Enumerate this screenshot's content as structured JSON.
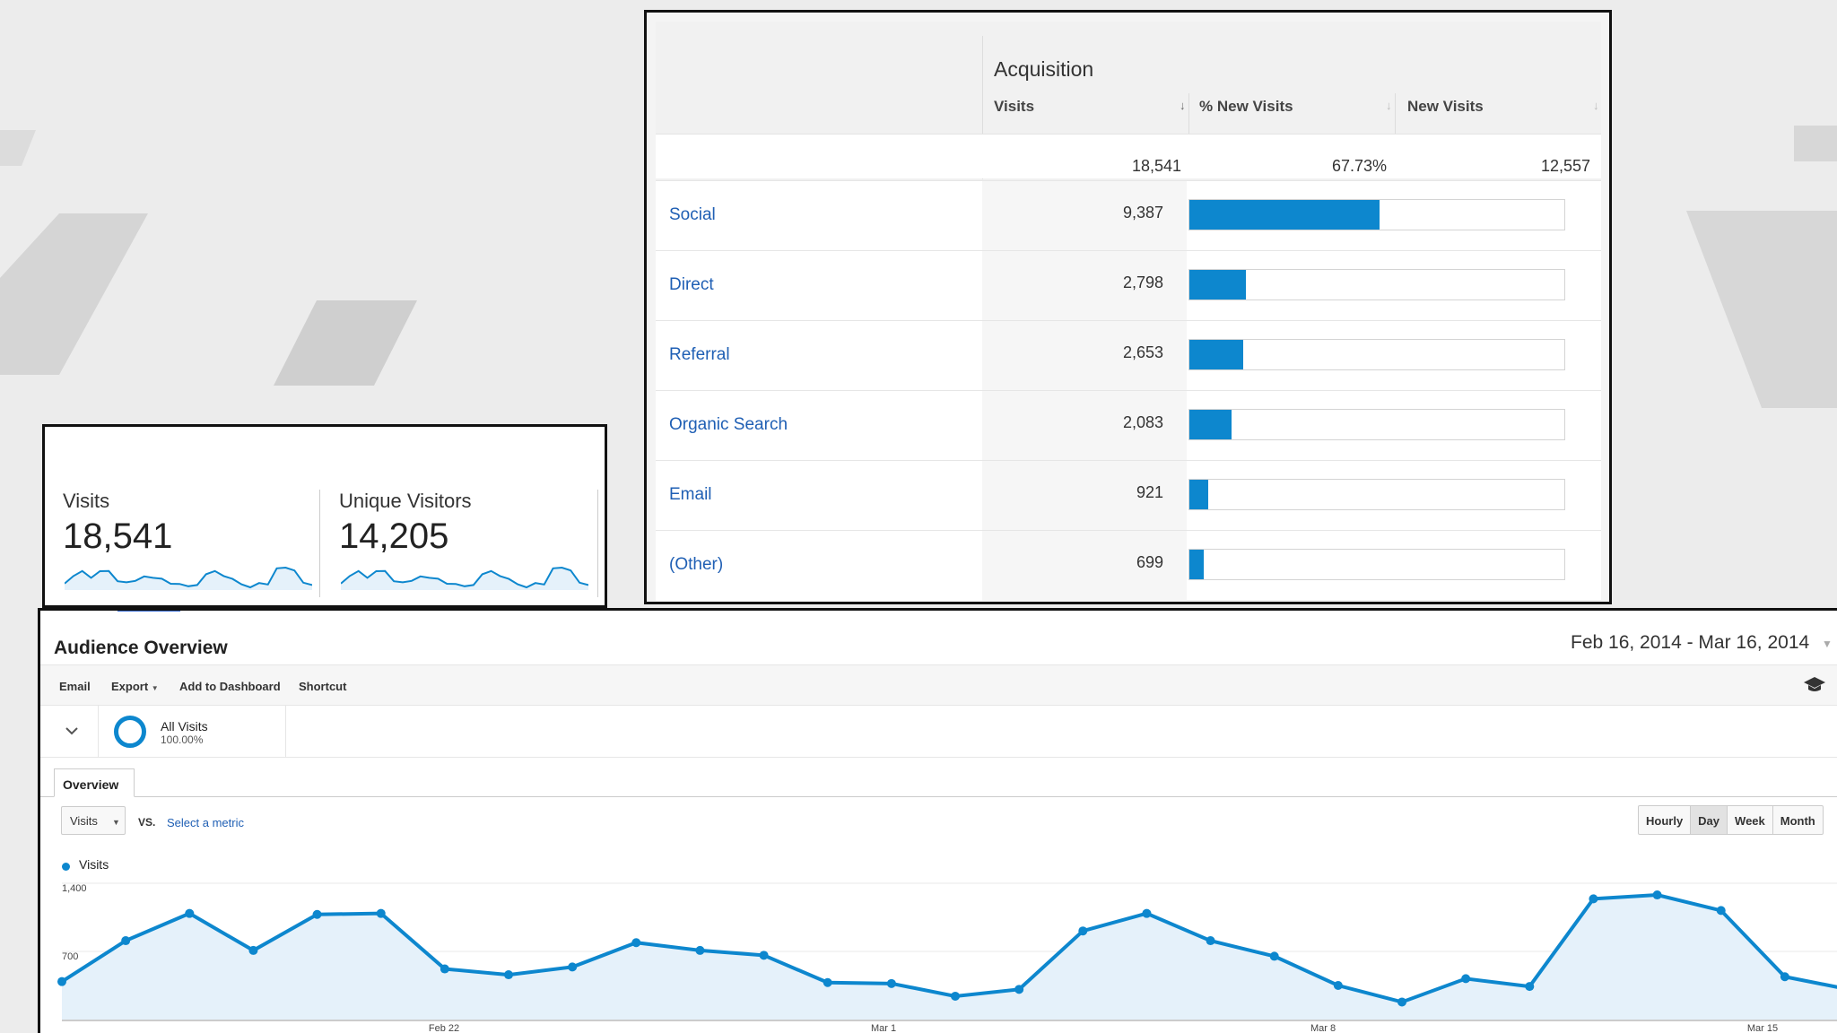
{
  "acquisition": {
    "group_label": "Acquisition",
    "columns": [
      "Visits",
      "% New Visits",
      "New Visits"
    ],
    "totals": [
      "18,541",
      "67.73%",
      "12,557"
    ],
    "rows": [
      {
        "name": "Social",
        "visits": "9,387",
        "pct": 50.6
      },
      {
        "name": "Direct",
        "visits": "2,798",
        "pct": 15.1
      },
      {
        "name": "Referral",
        "visits": "2,653",
        "pct": 14.3
      },
      {
        "name": "Organic Search",
        "visits": "2,083",
        "pct": 11.2
      },
      {
        "name": "Email",
        "visits": "921",
        "pct": 5.0
      },
      {
        "name": "(Other)",
        "visits": "699",
        "pct": 3.8
      }
    ],
    "bar_color": "#0d87ce"
  },
  "summary": {
    "visits_label": "Visits",
    "visits_value": "18,541",
    "unique_label": "Unique Visitors",
    "unique_value": "14,205"
  },
  "audience": {
    "title": "Audience Overview",
    "date_range": "Feb 16, 2014 - Mar 16, 2014",
    "toolbar": [
      "Email",
      "Export",
      "Add to Dashboard",
      "Shortcut"
    ],
    "segment": {
      "name": "All Visits",
      "pct": "100.00%"
    },
    "tab": "Overview",
    "metric_select": "Visits",
    "vs_label": "VS.",
    "select_metric": "Select a metric",
    "periods": [
      "Hourly",
      "Day",
      "Week",
      "Month"
    ],
    "active_period": "Day",
    "legend": "Visits"
  },
  "chart_data": {
    "type": "area",
    "series": [
      {
        "name": "Visits",
        "values": [
          390,
          810,
          1090,
          710,
          1080,
          1090,
          520,
          460,
          540,
          790,
          710,
          660,
          380,
          370,
          240,
          310,
          910,
          1090,
          810,
          650,
          350,
          180,
          420,
          340,
          1240,
          1280,
          1120,
          440,
          310
        ]
      }
    ],
    "x": [
      "Feb 16",
      "Feb 17",
      "Feb 18",
      "Feb 19",
      "Feb 20",
      "Feb 21",
      "Feb 22",
      "Feb 23",
      "Feb 24",
      "Feb 25",
      "Feb 26",
      "Feb 27",
      "Feb 28",
      "Mar 1",
      "Mar 2",
      "Mar 3",
      "Mar 4",
      "Mar 5",
      "Mar 6",
      "Mar 7",
      "Mar 8",
      "Mar 9",
      "Mar 10",
      "Mar 11",
      "Mar 12",
      "Mar 13",
      "Mar 14",
      "Mar 15",
      "Mar 16"
    ],
    "yticks": [
      "1,400",
      "700"
    ],
    "xticks": [
      "Feb 22",
      "Mar 1",
      "Mar 8",
      "Mar 15"
    ],
    "ylim": [
      0,
      1400
    ],
    "line_color": "#0d87ce",
    "fill_color": "#e5f1fa"
  }
}
